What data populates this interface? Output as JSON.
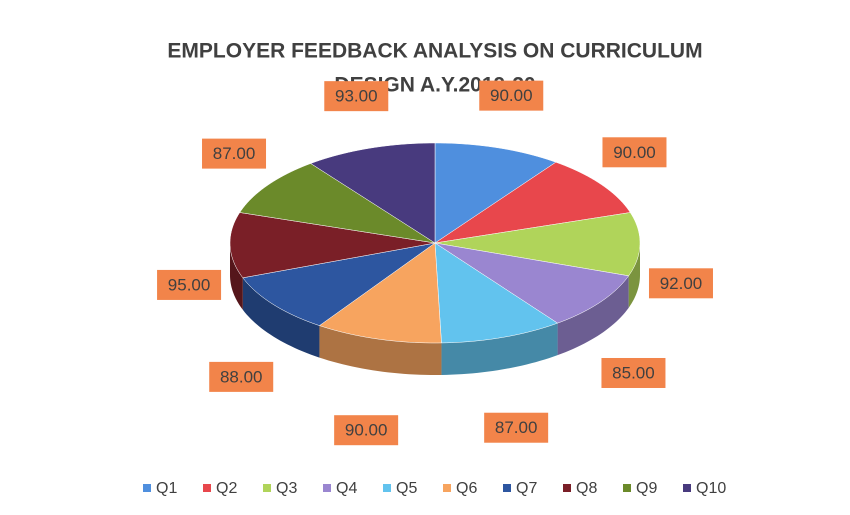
{
  "chart_data": {
    "type": "pie3d",
    "title": [
      "EMPLOYER FEEDBACK ANALYSIS ON CURRICULUM",
      "DESIGN A.Y.2019-20"
    ],
    "categories": [
      "Q1",
      "Q2",
      "Q3",
      "Q4",
      "Q5",
      "Q6",
      "Q7",
      "Q8",
      "Q9",
      "Q10"
    ],
    "values": [
      90,
      90,
      92,
      85,
      87,
      90,
      88,
      95,
      87,
      93
    ],
    "value_labels": [
      "90.00",
      "90.00",
      "92.00",
      "85.00",
      "87.00",
      "90.00",
      "88.00",
      "95.00",
      "87.00",
      "93.00"
    ],
    "colors": [
      "#4f8fde",
      "#e8474c",
      "#b0d45a",
      "#9a86d0",
      "#62c3ee",
      "#f7a45f",
      "#2d56a0",
      "#7a1f27",
      "#6b8a2a",
      "#483a7e"
    ],
    "legend": "bottom"
  }
}
